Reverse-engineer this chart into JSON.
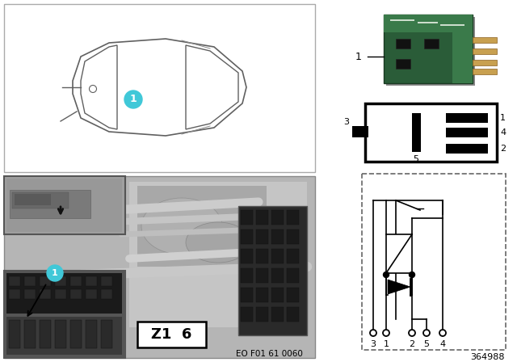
{
  "fig_width": 6.4,
  "fig_height": 4.48,
  "dpi": 100,
  "bg_color": "#ffffff",
  "part_number": "364988",
  "eo_number": "EO F01 61 0060",
  "cyan_color": "#40c8d8",
  "relay_dark_green": "#2a5c38",
  "relay_mid_green": "#3a7a4a",
  "relay_light_green": "#4a9a5a",
  "pin_gold": "#c8a050",
  "gray_photo": "#b8b8b8",
  "gray_dark": "#707070",
  "gray_mid": "#909090",
  "gray_light": "#d0d0d0"
}
